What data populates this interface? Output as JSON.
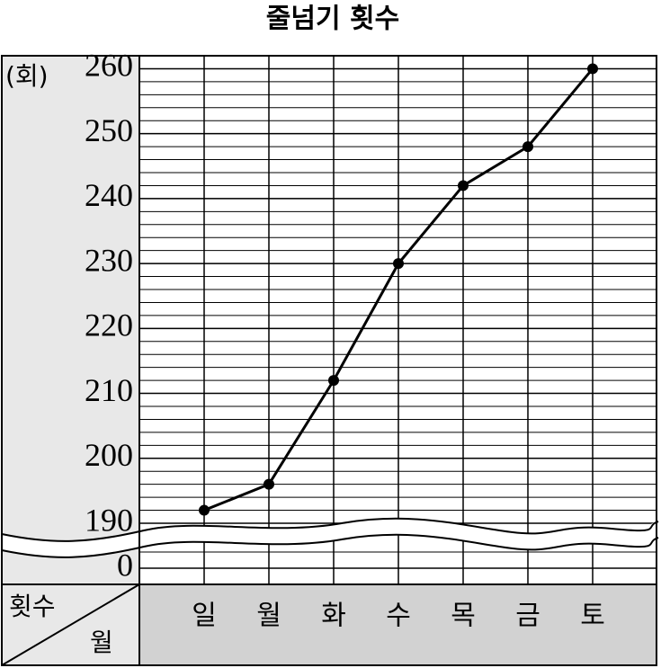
{
  "chart_data": {
    "type": "line",
    "title": "줄넘기 횟수",
    "y_unit": "(회)",
    "corner_y_label": "횟수",
    "corner_x_label": "월",
    "categories": [
      "일",
      "월",
      "화",
      "수",
      "목",
      "금",
      "토"
    ],
    "series": [
      {
        "name": "횟수",
        "color": "#000000",
        "values": [
          192,
          196,
          212,
          230,
          242,
          248,
          260
        ]
      }
    ],
    "ylim": [
      190,
      262
    ],
    "yticks": [
      0,
      190,
      200,
      210,
      220,
      230,
      240,
      250,
      260
    ],
    "axis_break": true,
    "minor_grid_step": 2,
    "grid": true
  }
}
